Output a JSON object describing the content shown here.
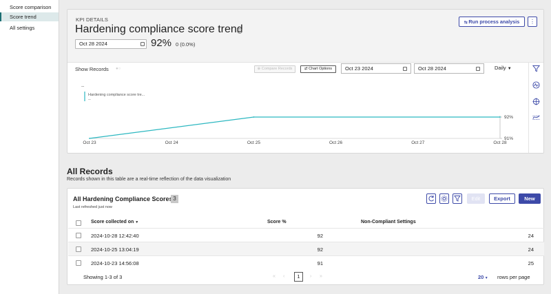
{
  "nav": {
    "items": [
      {
        "label": "Score comparison",
        "active": false
      },
      {
        "label": "Score trend",
        "active": true
      },
      {
        "label": "All settings",
        "active": false
      }
    ]
  },
  "kpi": {
    "kicker": "KPI DETAILS",
    "title": "Hardening compliance score trend",
    "date": "Oct 28 2024",
    "value": "92%",
    "delta": "0 (0.0%)",
    "run_button": "Run process analysis",
    "kebab": "⋮"
  },
  "chart_toolbar": {
    "show_records": "Show Records",
    "compare_button": "Compare Records",
    "chart_options_button": "Chart Options",
    "start_date": "Oct 23 2024",
    "end_date": "Oct 28 2024",
    "granularity": "Daily"
  },
  "chart_data": {
    "type": "line",
    "series": [
      {
        "name": "Hardening compliance score tre...",
        "color": "#2bb7c0",
        "x": [
          "Oct 23",
          "Oct 25",
          "Oct 28"
        ],
        "values": [
          91,
          92,
          92
        ]
      }
    ],
    "categories": [
      "Oct 23",
      "Oct 24",
      "Oct 25",
      "Oct 26",
      "Oct 27",
      "Oct 28"
    ],
    "y_ticks": [
      "92%",
      "91%"
    ],
    "ylim": [
      91,
      92
    ],
    "tooltip_header": "--",
    "tooltip_value": "--"
  },
  "records": {
    "title": "All Records",
    "subtitle": "Records shown in this table are a real-time reflection of the data visualization",
    "table_title": "All Hardening Compliance Scores",
    "count": "3",
    "refreshed": "Last refreshed just now",
    "edit": "Edit",
    "export": "Export",
    "new": "New",
    "columns": [
      "Score collected on",
      "Score %",
      "Non-Compliant Settings"
    ],
    "rows": [
      {
        "date": "2024-10-28 12:42:40",
        "score": "92",
        "noncompliant": "24"
      },
      {
        "date": "2024-10-25 13:04:19",
        "score": "92",
        "noncompliant": "24"
      },
      {
        "date": "2024-10-23 14:56:08",
        "score": "91",
        "noncompliant": "25"
      }
    ],
    "showing": "Showing 1-3 of 3",
    "page": "1",
    "page_size": "20",
    "rows_per_page": "rows per page"
  },
  "colors": {
    "accent": "#3d4aa8",
    "line": "#2bb7c0",
    "nav_active": "#1b6e72"
  }
}
